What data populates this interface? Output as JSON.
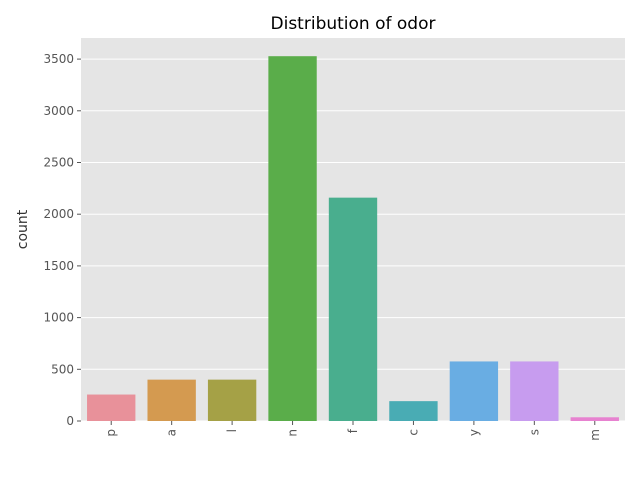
{
  "chart_data": {
    "type": "bar",
    "title": "Distribution of odor",
    "xlabel": "",
    "ylabel": "count",
    "categories": [
      "p",
      "a",
      "l",
      "n",
      "f",
      "c",
      "y",
      "s",
      "m"
    ],
    "values": [
      256,
      400,
      400,
      3528,
      2160,
      192,
      576,
      576,
      36
    ],
    "ylim": [
      0,
      3704
    ],
    "yticks": [
      0,
      500,
      1000,
      1500,
      2000,
      2500,
      3000,
      3500
    ],
    "grid": true,
    "colors": [
      "#e8919a",
      "#d49a50",
      "#a5a146",
      "#5aad4a",
      "#49ae8e",
      "#49acb4",
      "#69ade3",
      "#c79cef",
      "#e782d0"
    ],
    "style": {
      "background": "#e5e5e5",
      "grid_color": "#ffffff"
    }
  }
}
